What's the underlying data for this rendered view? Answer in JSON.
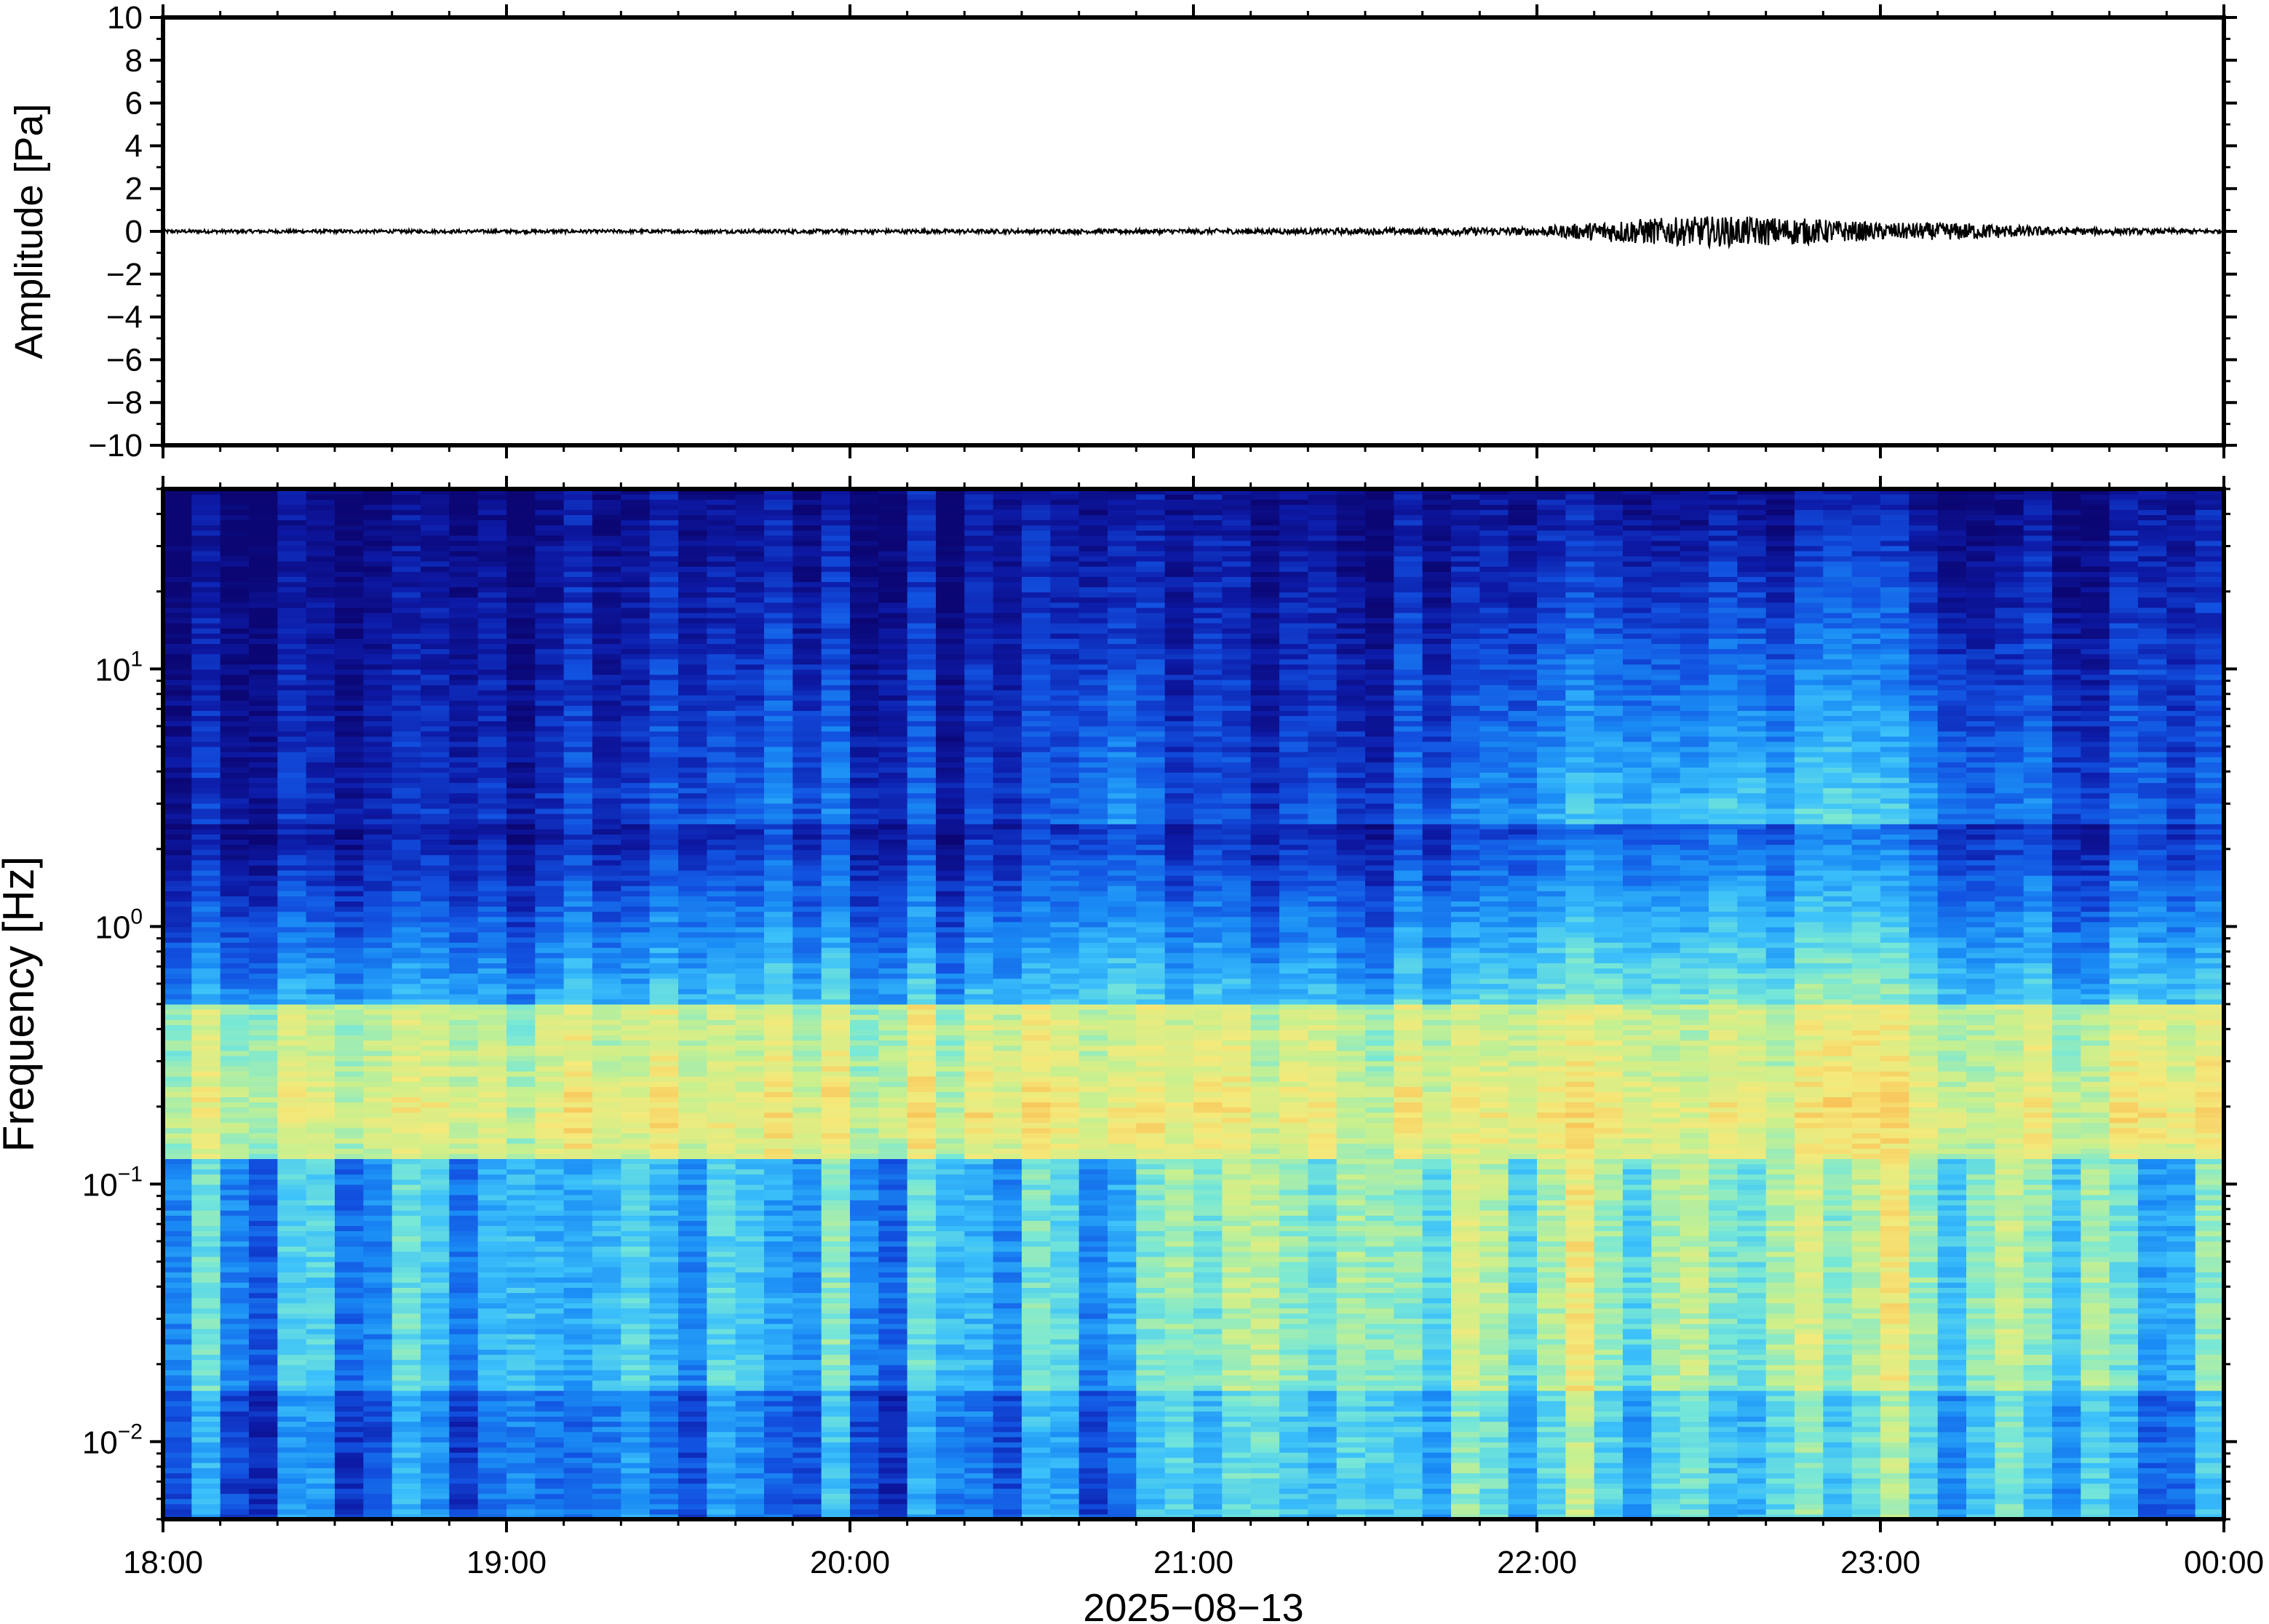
{
  "chart_data": [
    {
      "type": "line",
      "ylabel": "Amplitude [Pa]",
      "ylim": [
        -10,
        10
      ],
      "yticks": [
        10,
        8,
        6,
        4,
        2,
        0,
        -2,
        -4,
        -6,
        -8,
        -10
      ],
      "ytick_labels": [
        "10",
        "8",
        "6",
        "4",
        "2",
        "0",
        "−2",
        "−4",
        "−6",
        "−8",
        "−10"
      ],
      "xlim": [
        "18:00",
        "00:00"
      ],
      "x_hours": [
        18.0,
        18.5,
        19.0,
        19.5,
        20.0,
        20.5,
        21.0,
        21.5,
        22.0,
        22.25,
        22.5,
        22.75,
        23.0,
        23.25,
        23.5,
        23.75,
        24.0
      ],
      "envelope_pa": [
        0.05,
        0.05,
        0.05,
        0.05,
        0.06,
        0.06,
        0.07,
        0.09,
        0.12,
        0.35,
        0.45,
        0.4,
        0.25,
        0.25,
        0.12,
        0.08,
        0.06
      ],
      "line_color": "#000000"
    },
    {
      "type": "heatmap",
      "ylabel": "Frequency [Hz]",
      "xlabel": "2025−08−13",
      "y_scale": "log",
      "ylim_hz": [
        0.005,
        50
      ],
      "ytick_values": [
        0.01,
        0.1,
        1,
        10
      ],
      "ytick_labels": [
        {
          "base": "10",
          "exp": "−2"
        },
        {
          "base": "10",
          "exp": "−1"
        },
        {
          "base": "10",
          "exp": "0"
        },
        {
          "base": "10",
          "exp": "1"
        }
      ],
      "xlim": [
        "18:00",
        "00:00"
      ],
      "xtick_labels": [
        "18:00",
        "19:00",
        "20:00",
        "21:00",
        "22:00",
        "23:00",
        "00:00"
      ],
      "colormap": [
        "#0b0673",
        "#0d1ba8",
        "#1250e0",
        "#1a8cf5",
        "#3cc1fa",
        "#78e8d6",
        "#c8f08e",
        "#f5e97a",
        "#f9b84f",
        "#f07a32"
      ],
      "grid": false
    }
  ]
}
